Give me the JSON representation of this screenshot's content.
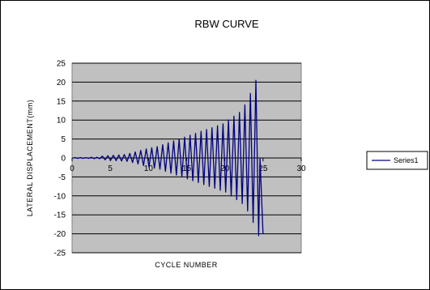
{
  "chart_data": {
    "type": "line",
    "title": "RBW CURVE",
    "xlabel": "CYCLE NUMBER",
    "ylabel": "LATERAL DISPLACEMENT(mm)",
    "xlim": [
      0,
      30
    ],
    "ylim": [
      -25,
      25
    ],
    "x_ticks": [
      0,
      5,
      10,
      15,
      20,
      25,
      30
    ],
    "y_ticks": [
      25,
      20,
      15,
      10,
      5,
      0,
      -5,
      -10,
      -15,
      -20,
      -25
    ],
    "x_tick_labels": [
      "0",
      "5",
      "10",
      "15",
      "20",
      "25",
      "30"
    ],
    "y_tick_labels": [
      "25",
      "20",
      "15",
      "10",
      "5",
      "0",
      "-5",
      "-10",
      "-15",
      "-20",
      "-25"
    ],
    "grid": true,
    "plot_background": "#c0c0c0",
    "legend_position": "right",
    "series": [
      {
        "name": "Series1",
        "color": "#000080",
        "cycle_amplitudes": [
          0.1,
          0.1,
          0.1,
          0.2,
          0.2,
          0.5,
          0.6,
          0.7,
          0.8,
          0.9,
          1.2,
          1.6,
          2.0,
          2.4,
          2.7,
          3.0,
          3.5,
          4.0,
          4.5,
          5.0,
          5.5,
          6.0,
          6.5,
          7.0,
          7.5,
          8.0,
          8.5,
          9.0,
          10.0,
          11.0,
          12.0,
          14.0,
          17.0,
          20.5
        ],
        "x_start": 0.2,
        "x_end": 24.6,
        "final_point": [
          25.0,
          -20.0
        ]
      }
    ]
  }
}
